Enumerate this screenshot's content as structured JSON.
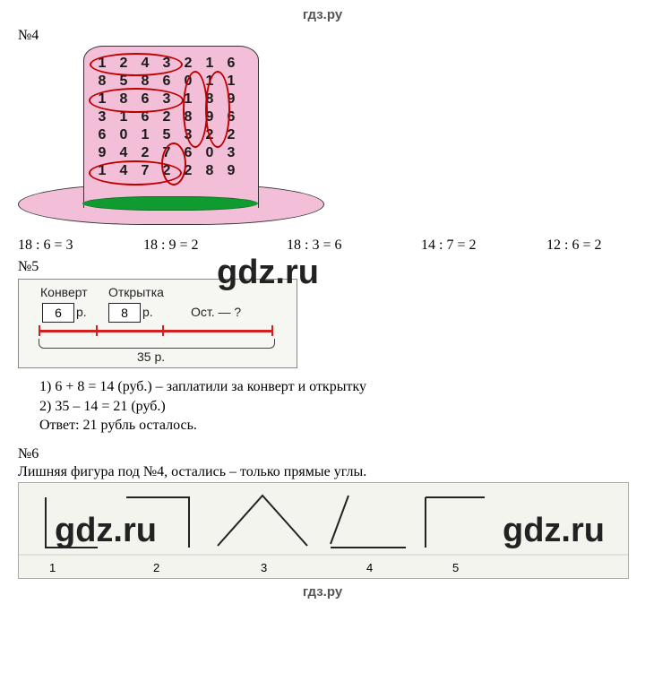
{
  "header_watermark": "гдз.ру",
  "footer_watermark": "гдз.ру",
  "watermark_big": "gdz.ru",
  "task4": {
    "label": "№4",
    "grid": [
      [
        "1",
        "2",
        "4",
        "3",
        "2",
        "1",
        "6"
      ],
      [
        "8",
        "5",
        "8",
        "6",
        "0",
        "1",
        "1"
      ],
      [
        "1",
        "8",
        "6",
        "3",
        "1",
        "8",
        "9"
      ],
      [
        "3",
        "1",
        "6",
        "2",
        "8",
        "9",
        "6"
      ],
      [
        "6",
        "0",
        "1",
        "5",
        "3",
        "2",
        "2"
      ],
      [
        "9",
        "4",
        "2",
        "7",
        "6",
        "0",
        "3"
      ],
      [
        "1",
        "4",
        "7",
        "2",
        "2",
        "8",
        "9"
      ]
    ],
    "equations": [
      "18 : 6 = 3",
      "18 : 9 = 2",
      "18 : 3 = 6",
      "14 : 7 = 2",
      "12 : 6 = 2"
    ],
    "eq_widths": [
      140,
      160,
      150,
      140,
      90
    ]
  },
  "task5": {
    "label": "№5",
    "konvert_label": "Конверт",
    "otkrytka_label": "Открытка",
    "konvert_val": "6",
    "otkrytka_val": "8",
    "rub": "р.",
    "ost": "Ост. — ?",
    "total": "35  р.",
    "solution1": "1)  6 + 8 = 14 (руб.) – заплатили за конверт и открытку",
    "solution2": "2)  35 – 14 = 21 (руб.)",
    "answer": "Ответ: 21 рубль осталось."
  },
  "task6": {
    "label": "№6",
    "text": "Лишняя фигура под №4, остались – только прямые углы.",
    "numbers": [
      "1",
      "2",
      "3",
      "4",
      "5"
    ],
    "angles_stroke": "#222222",
    "baseline_color": "#cccccc"
  },
  "colors": {
    "hat_fill": "#f3bfd8",
    "hat_band": "#0f9b2f",
    "circle": "#c00000",
    "redline": "#d02020"
  }
}
